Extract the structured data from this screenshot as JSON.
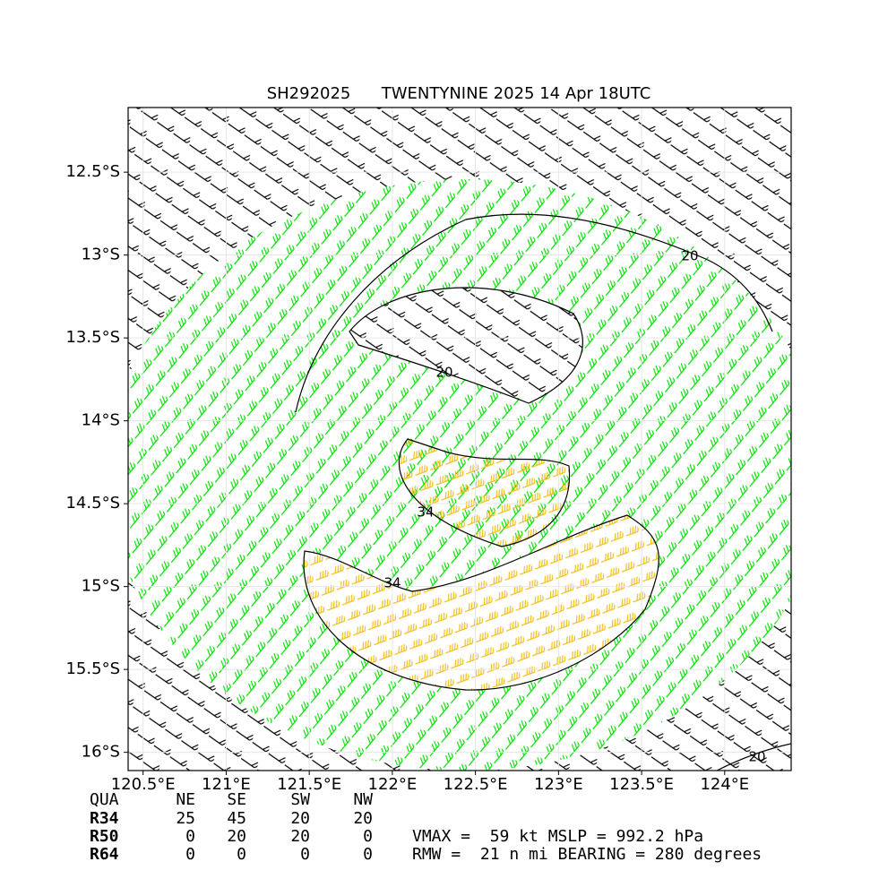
{
  "chart_data": {
    "type": "wind-map",
    "title": "SH292025      TWENTYNINE 2025 14 Apr 18UTC",
    "xlim": [
      120.41,
      124.4
    ],
    "ylim": [
      -16.11,
      -12.11
    ],
    "xticks": [
      {
        "value": 120.5,
        "label": "120.5°E"
      },
      {
        "value": 121,
        "label": "121°E"
      },
      {
        "value": 121.5,
        "label": "121.5°E"
      },
      {
        "value": 122,
        "label": "122°E"
      },
      {
        "value": 122.5,
        "label": "122.5°E"
      },
      {
        "value": 123,
        "label": "123°E"
      },
      {
        "value": 123.5,
        "label": "123.5°E"
      },
      {
        "value": 124,
        "label": "124°E"
      }
    ],
    "yticks": [
      {
        "value": -12.5,
        "label": "12.5°S"
      },
      {
        "value": -13,
        "label": "13°S"
      },
      {
        "value": -13.5,
        "label": "13.5°S"
      },
      {
        "value": -14,
        "label": "14°S"
      },
      {
        "value": -14.5,
        "label": "14.5°S"
      },
      {
        "value": -15,
        "label": "15°S"
      },
      {
        "value": -15.5,
        "label": "15.5°S"
      },
      {
        "value": -16,
        "label": "16°S"
      }
    ],
    "grid": true,
    "contour_levels": [
      20,
      34
    ]
  },
  "radii_table": {
    "header": [
      "QUA",
      "NE",
      "SE",
      "SW",
      "NW"
    ],
    "rows": [
      [
        "R34",
        "25",
        "45",
        "20",
        "20"
      ],
      [
        "R50",
        "0",
        "20",
        "20",
        "0"
      ],
      [
        "R64",
        "0",
        "0",
        "0",
        "0"
      ]
    ]
  },
  "stats": [
    "VMAX =  59 kt MSLP = 992.2 hPa",
    "RMW =  21 n mi BEARING = 280 degrees"
  ]
}
